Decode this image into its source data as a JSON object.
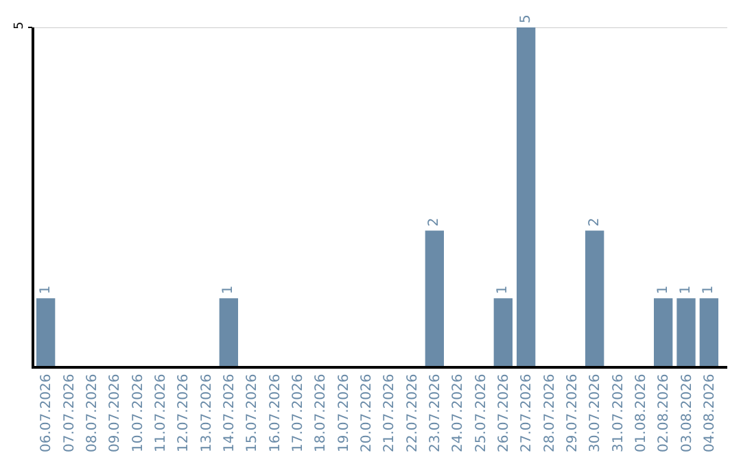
{
  "chart_data": {
    "type": "bar",
    "categories": [
      "06.07.2026",
      "07.07.2026",
      "08.07.2026",
      "09.07.2026",
      "10.07.2026",
      "11.07.2026",
      "12.07.2026",
      "13.07.2026",
      "14.07.2026",
      "15.07.2026",
      "16.07.2026",
      "17.07.2026",
      "18.07.2026",
      "19.07.2026",
      "20.07.2026",
      "21.07.2026",
      "22.07.2026",
      "23.07.2026",
      "24.07.2026",
      "25.07.2026",
      "26.07.2026",
      "27.07.2026",
      "28.07.2026",
      "29.07.2026",
      "30.07.2026",
      "31.07.2026",
      "01.08.2026",
      "02.08.2026",
      "03.08.2026",
      "04.08.2026"
    ],
    "values": [
      1,
      0,
      0,
      0,
      0,
      0,
      0,
      0,
      1,
      0,
      0,
      0,
      0,
      0,
      0,
      0,
      0,
      2,
      0,
      0,
      1,
      5,
      0,
      0,
      2,
      0,
      0,
      1,
      1,
      1
    ],
    "value_labels": [
      "1",
      null,
      null,
      null,
      null,
      null,
      null,
      null,
      "1",
      null,
      null,
      null,
      null,
      null,
      null,
      null,
      null,
      "2",
      null,
      null,
      "1",
      "5",
      null,
      null,
      "2",
      null,
      null,
      "1",
      "1",
      "1"
    ],
    "color": "#6a8ba8",
    "ylim": [
      0,
      5
    ],
    "yticks": [
      5
    ],
    "ref_lines": [
      {
        "axis": "y",
        "value": 5,
        "color": "#cccccc"
      }
    ],
    "legend": false
  }
}
